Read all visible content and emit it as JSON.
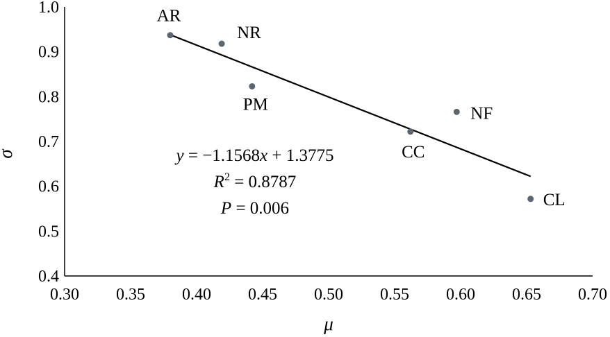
{
  "chart_data": {
    "type": "scatter",
    "title": "",
    "xlabel": "μ",
    "ylabel": "σ",
    "xlim": [
      0.3,
      0.7
    ],
    "ylim": [
      0.4,
      1.0
    ],
    "xticks": [
      "0.30",
      "0.35",
      "0.40",
      "0.45",
      "0.50",
      "0.55",
      "0.60",
      "0.65",
      "0.70"
    ],
    "yticks": [
      "0.4",
      "0.5",
      "0.6",
      "0.7",
      "0.8",
      "0.9",
      "1.0"
    ],
    "grid": false,
    "legend": "none",
    "point_color": "#5c6670",
    "points": [
      {
        "label": "AR",
        "x": 0.38,
        "y": 0.937
      },
      {
        "label": "NR",
        "x": 0.419,
        "y": 0.918
      },
      {
        "label": "PM",
        "x": 0.442,
        "y": 0.823
      },
      {
        "label": "CC",
        "x": 0.562,
        "y": 0.722
      },
      {
        "label": "NF",
        "x": 0.597,
        "y": 0.766
      },
      {
        "label": "CL",
        "x": 0.653,
        "y": 0.572
      }
    ],
    "trendline": {
      "slope": -1.1568,
      "intercept": 1.3775,
      "x_start": 0.38,
      "x_end": 0.653
    },
    "annotations": {
      "equation_y": "y",
      "equation_rest": " = −1.1568",
      "equation_x": "x",
      "equation_tail": " + 1.3775",
      "r2_var": "R",
      "r2_sup": "2",
      "r2_value": " = 0.8787",
      "p_var": "P",
      "p_value": " = 0.006"
    }
  }
}
